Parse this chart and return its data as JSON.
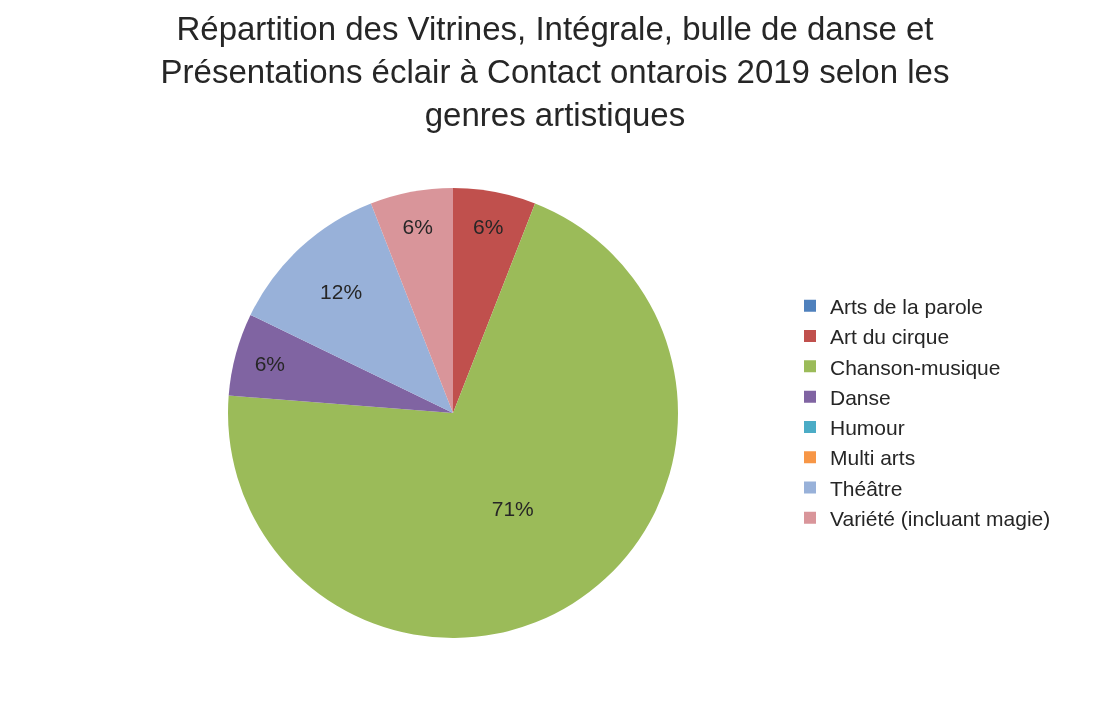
{
  "chart_data": {
    "type": "pie",
    "title": "Répartition des Vitrines, Intégrale, bulle de danse et Présentations éclair à Contact ontarois 2019 selon les genres artistiques",
    "categories": [
      "Arts de la parole",
      "Art du cirque",
      "Chanson-musique",
      "Danse",
      "Humour",
      "Multi arts",
      "Théâtre",
      "Variété (incluant magie)"
    ],
    "values": [
      0,
      6,
      71,
      6,
      0,
      0,
      12,
      6
    ],
    "colors": [
      "#4f81bd",
      "#c0504d",
      "#9bbb59",
      "#8064a2",
      "#4bacc6",
      "#f79646",
      "#98b1d9",
      "#d9959a"
    ],
    "value_labels": [
      null,
      "6%",
      "71%",
      "6%",
      null,
      null,
      "12%",
      "6%"
    ],
    "legend": "right"
  }
}
